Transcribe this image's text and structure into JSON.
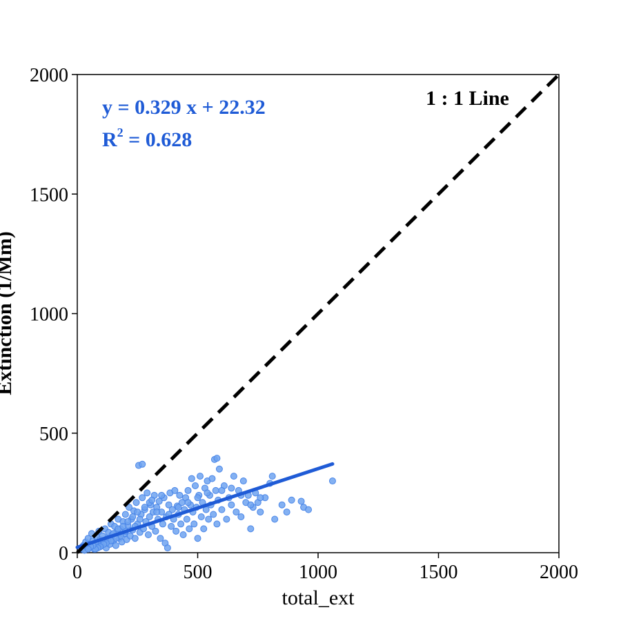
{
  "chart_data": {
    "type": "scatter",
    "xlabel": "total_ext",
    "ylabel": "Extinction (1/Mm)",
    "xlim": [
      0,
      2000
    ],
    "ylim": [
      0,
      2000
    ],
    "xticks": [
      "0",
      "500",
      "1000",
      "1500",
      "2000"
    ],
    "yticks": [
      "0",
      "500",
      "1000",
      "1500",
      "2000"
    ],
    "grid": false,
    "colors": {
      "points_fill": "#6fa3f0",
      "points_edge": "#4a86e8",
      "fit_line": "#1f5bd6",
      "identity_line": "#000000",
      "equation_text": "#1f5bd6"
    },
    "annotations": {
      "equation": "y =  0.329 x + 22.32",
      "r2_prefix": "R",
      "r2_sup": "2",
      "r2_value": " = 0.628",
      "identity_label": "1 : 1 Line"
    },
    "fit": {
      "slope": 0.329,
      "intercept": 22.32,
      "x_range": [
        0,
        1060
      ]
    },
    "identity_line": {
      "from": [
        0,
        0
      ],
      "to": [
        2000,
        2000
      ]
    },
    "series": [
      {
        "points": [
          [
            20,
            15
          ],
          [
            25,
            30
          ],
          [
            30,
            10
          ],
          [
            35,
            45
          ],
          [
            40,
            25
          ],
          [
            45,
            60
          ],
          [
            50,
            20
          ],
          [
            55,
            35
          ],
          [
            60,
            80
          ],
          [
            65,
            50
          ],
          [
            70,
            15
          ],
          [
            75,
            40
          ],
          [
            80,
            65
          ],
          [
            85,
            25
          ],
          [
            90,
            90
          ],
          [
            95,
            55
          ],
          [
            100,
            30
          ],
          [
            105,
            70
          ],
          [
            110,
            45
          ],
          [
            115,
            100
          ],
          [
            120,
            20
          ],
          [
            125,
            60
          ],
          [
            130,
            85
          ],
          [
            135,
            35
          ],
          [
            140,
            120
          ],
          [
            145,
            75
          ],
          [
            150,
            50
          ],
          [
            155,
            110
          ],
          [
            160,
            30
          ],
          [
            165,
            90
          ],
          [
            170,
            140
          ],
          [
            175,
            60
          ],
          [
            180,
            100
          ],
          [
            185,
            45
          ],
          [
            190,
            130
          ],
          [
            195,
            80
          ],
          [
            200,
            160
          ],
          [
            205,
            55
          ],
          [
            210,
            115
          ],
          [
            215,
            190
          ],
          [
            220,
            70
          ],
          [
            225,
            140
          ],
          [
            230,
            95
          ],
          [
            235,
            175
          ],
          [
            240,
            60
          ],
          [
            245,
            210
          ],
          [
            250,
            120
          ],
          [
            255,
            365
          ],
          [
            260,
            85
          ],
          [
            265,
            160
          ],
          [
            270,
            230
          ],
          [
            275,
            100
          ],
          [
            280,
            180
          ],
          [
            285,
            130
          ],
          [
            290,
            250
          ],
          [
            295,
            75
          ],
          [
            300,
            150
          ],
          [
            305,
            200
          ],
          [
            310,
            110
          ],
          [
            315,
            170
          ],
          [
            320,
            240
          ],
          [
            325,
            90
          ],
          [
            330,
            190
          ],
          [
            335,
            140
          ],
          [
            340,
            215
          ],
          [
            345,
            60
          ],
          [
            350,
            170
          ],
          [
            355,
            120
          ],
          [
            360,
            230
          ],
          [
            365,
            40
          ],
          [
            370,
            150
          ],
          [
            375,
            20
          ],
          [
            380,
            200
          ],
          [
            385,
            250
          ],
          [
            390,
            110
          ],
          [
            395,
            180
          ],
          [
            400,
            140
          ],
          [
            405,
            260
          ],
          [
            410,
            90
          ],
          [
            415,
            195
          ],
          [
            420,
            160
          ],
          [
            425,
            240
          ],
          [
            430,
            120
          ],
          [
            435,
            210
          ],
          [
            440,
            75
          ],
          [
            445,
            180
          ],
          [
            450,
            230
          ],
          [
            455,
            140
          ],
          [
            460,
            260
          ],
          [
            465,
            100
          ],
          [
            470,
            200
          ],
          [
            475,
            310
          ],
          [
            480,
            170
          ],
          [
            485,
            120
          ],
          [
            490,
            280
          ],
          [
            495,
            190
          ],
          [
            500,
            60
          ],
          [
            505,
            240
          ],
          [
            510,
            320
          ],
          [
            515,
            150
          ],
          [
            520,
            210
          ],
          [
            525,
            100
          ],
          [
            530,
            270
          ],
          [
            535,
            180
          ],
          [
            540,
            300
          ],
          [
            545,
            140
          ],
          [
            550,
            240
          ],
          [
            555,
            200
          ],
          [
            560,
            310
          ],
          [
            565,
            160
          ],
          [
            570,
            390
          ],
          [
            575,
            260
          ],
          [
            580,
            120
          ],
          [
            585,
            220
          ],
          [
            590,
            350
          ],
          [
            600,
            180
          ],
          [
            610,
            280
          ],
          [
            620,
            140
          ],
          [
            630,
            230
          ],
          [
            640,
            200
          ],
          [
            650,
            320
          ],
          [
            660,
            170
          ],
          [
            670,
            260
          ],
          [
            680,
            150
          ],
          [
            690,
            300
          ],
          [
            700,
            210
          ],
          [
            710,
            240
          ],
          [
            720,
            100
          ],
          [
            730,
            190
          ],
          [
            740,
            250
          ],
          [
            750,
            210
          ],
          [
            760,
            170
          ],
          [
            780,
            230
          ],
          [
            800,
            290
          ],
          [
            810,
            320
          ],
          [
            820,
            140
          ],
          [
            850,
            200
          ],
          [
            870,
            170
          ],
          [
            890,
            220
          ],
          [
            930,
            215
          ],
          [
            940,
            190
          ],
          [
            960,
            180
          ],
          [
            1060,
            300
          ],
          [
            270,
            370
          ],
          [
            580,
            395
          ],
          [
            300,
            210
          ],
          [
            330,
            170
          ],
          [
            260,
            140
          ],
          [
            240,
            110
          ],
          [
            200,
            90
          ],
          [
            180,
            70
          ],
          [
            160,
            60
          ],
          [
            140,
            50
          ],
          [
            120,
            40
          ],
          [
            110,
            35
          ],
          [
            95,
            25
          ],
          [
            85,
            20
          ],
          [
            75,
            15
          ],
          [
            65,
            30
          ],
          [
            55,
            25
          ],
          [
            45,
            15
          ],
          [
            150,
            80
          ],
          [
            170,
            100
          ],
          [
            190,
            110
          ],
          [
            210,
            130
          ],
          [
            230,
            150
          ],
          [
            250,
            170
          ],
          [
            280,
            190
          ],
          [
            310,
            220
          ],
          [
            350,
            240
          ],
          [
            380,
            160
          ],
          [
            420,
            190
          ],
          [
            460,
            210
          ],
          [
            500,
            230
          ],
          [
            540,
            250
          ],
          [
            600,
            260
          ],
          [
            640,
            270
          ],
          [
            680,
            240
          ],
          [
            720,
            200
          ],
          [
            760,
            230
          ]
        ]
      }
    ]
  }
}
